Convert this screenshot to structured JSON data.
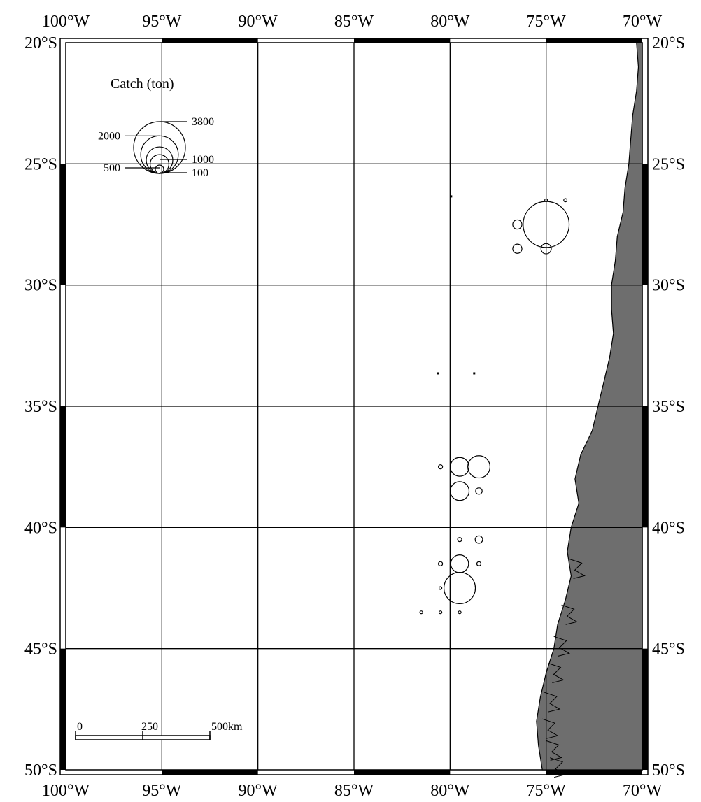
{
  "map": {
    "lon_labels": [
      "100°W",
      "95°W",
      "90°W",
      "85°W",
      "80°W",
      "75°W",
      "70°W"
    ],
    "lat_labels": [
      "20°S",
      "25°S",
      "30°S",
      "35°S",
      "40°S",
      "45°S",
      "50°S"
    ],
    "lon_values": [
      -100,
      -95,
      -90,
      -85,
      -80,
      -75,
      -70
    ],
    "lat_values": [
      -20,
      -25,
      -30,
      -35,
      -40,
      -45,
      -50
    ],
    "extent": {
      "lon": [
        -100,
        -70
      ],
      "lat": [
        -50,
        -20
      ]
    },
    "land_color": "#6e6e6e",
    "grid": true
  },
  "legend": {
    "title": "Catch (ton)",
    "entries": [
      {
        "label": "3800",
        "value": 3800
      },
      {
        "label": "2000",
        "value": 2000
      },
      {
        "label": "1000",
        "value": 1000
      },
      {
        "label": "500",
        "value": 500
      },
      {
        "label": "100",
        "value": 100
      }
    ]
  },
  "scale_bar": {
    "labels": [
      "0",
      "250",
      "500km"
    ],
    "max_km": 500
  },
  "chart_data": {
    "type": "scatter",
    "encoding": "proportional circles",
    "points": [
      {
        "lon": -75.0,
        "lat": -27.5,
        "catch_ton": 3000
      },
      {
        "lon": -76.5,
        "lat": -27.5,
        "catch_ton": 120
      },
      {
        "lon": -76.5,
        "lat": -28.5,
        "catch_ton": 120
      },
      {
        "lon": -75.0,
        "lat": -28.5,
        "catch_ton": 150
      },
      {
        "lon": -75.0,
        "lat": -26.5,
        "catch_ton": 5
      },
      {
        "lon": -74.0,
        "lat": -26.5,
        "catch_ton": 15
      },
      {
        "lon": -79.5,
        "lat": -37.5,
        "catch_ton": 500
      },
      {
        "lon": -78.5,
        "lat": -37.5,
        "catch_ton": 700
      },
      {
        "lon": -79.5,
        "lat": -38.5,
        "catch_ton": 500
      },
      {
        "lon": -78.5,
        "lat": -38.5,
        "catch_ton": 60
      },
      {
        "lon": -80.5,
        "lat": -37.5,
        "catch_ton": 25
      },
      {
        "lon": -79.5,
        "lat": -40.5,
        "catch_ton": 25
      },
      {
        "lon": -78.5,
        "lat": -40.5,
        "catch_ton": 80
      },
      {
        "lon": -80.5,
        "lat": -41.5,
        "catch_ton": 25
      },
      {
        "lon": -79.5,
        "lat": -41.5,
        "catch_ton": 450
      },
      {
        "lon": -78.5,
        "lat": -41.5,
        "catch_ton": 25
      },
      {
        "lon": -80.5,
        "lat": -42.5,
        "catch_ton": 10
      },
      {
        "lon": -79.5,
        "lat": -42.5,
        "catch_ton": 1400
      },
      {
        "lon": -81.5,
        "lat": -43.5,
        "catch_ton": 10
      },
      {
        "lon": -80.5,
        "lat": -43.5,
        "catch_ton": 10
      },
      {
        "lon": -79.5,
        "lat": -43.5,
        "catch_ton": 10
      }
    ]
  }
}
